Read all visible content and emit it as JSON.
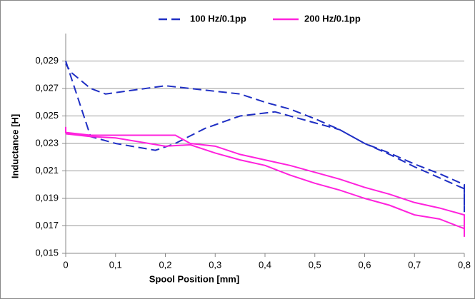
{
  "chart_data": {
    "type": "line",
    "xlabel": "Spool Position [mm]",
    "ylabel": "Inductance [H]",
    "xlim": [
      0,
      0.8
    ],
    "xticks": [
      0,
      {
        "value": 0.1,
        "label": "0,1"
      },
      {
        "value": 0.2,
        "label": "0,2"
      },
      {
        "value": 0.3,
        "label": "0,3"
      },
      {
        "value": 0.4,
        "label": "0,4"
      },
      {
        "value": 0.5,
        "label": "0,5"
      },
      {
        "value": 0.6,
        "label": "0,6"
      },
      {
        "value": 0.7,
        "label": "0,7"
      },
      {
        "value": 0.8,
        "label": "0,8"
      }
    ],
    "ylim": [
      0.015,
      0.031
    ],
    "yticks": [
      {
        "value": 0.015,
        "label": "0,015"
      },
      {
        "value": 0.017,
        "label": "0,017"
      },
      {
        "value": 0.019,
        "label": "0,019"
      },
      {
        "value": 0.021,
        "label": "0,021"
      },
      {
        "value": 0.023,
        "label": "0,023"
      },
      {
        "value": 0.025,
        "label": "0,025"
      },
      {
        "value": 0.027,
        "label": "0,027"
      },
      {
        "value": 0.029,
        "label": "0,029"
      }
    ],
    "grid": true,
    "legend": "top",
    "series": [
      {
        "name": "100 Hz/0.1pp",
        "color": "#1f2fc4",
        "line_style": "dashed",
        "x": [
          0,
          0.05,
          0.1,
          0.18,
          0.22,
          0.28,
          0.35,
          0.42,
          0.5,
          0.55,
          0.6,
          0.65,
          0.7,
          0.75,
          0.8,
          0.8,
          0.8,
          0.75,
          0.7,
          0.65,
          0.6,
          0.55,
          0.5,
          0.45,
          0.4,
          0.35,
          0.3,
          0.25,
          0.2,
          0.08,
          0.05,
          0.01,
          0
        ],
        "values": [
          0.029,
          0.0235,
          0.023,
          0.0225,
          0.023,
          0.0241,
          0.025,
          0.0253,
          0.0245,
          0.024,
          0.023,
          0.0223,
          0.0215,
          0.0208,
          0.02,
          0.018,
          0.0197,
          0.0205,
          0.0213,
          0.0222,
          0.023,
          0.024,
          0.0248,
          0.0255,
          0.026,
          0.0266,
          0.0268,
          0.027,
          0.0272,
          0.0266,
          0.027,
          0.0282,
          0.0288
        ]
      },
      {
        "name": "200 Hz/0.1pp",
        "color": "#ff22dd",
        "line_style": "solid",
        "x": [
          0,
          0,
          0.05,
          0.2,
          0.22,
          0.25,
          0.3,
          0.35,
          0.4,
          0.45,
          0.5,
          0.55,
          0.6,
          0.65,
          0.7,
          0.75,
          0.8,
          0.8,
          0.8,
          0.75,
          0.7,
          0.65,
          0.6,
          0.55,
          0.5,
          0.45,
          0.4,
          0.35,
          0.3,
          0.25,
          0.2,
          0.1,
          0.05,
          0
        ],
        "values": [
          0.0242,
          0.0238,
          0.0236,
          0.0236,
          0.0236,
          0.023,
          0.0228,
          0.0222,
          0.0218,
          0.0214,
          0.0209,
          0.0204,
          0.0198,
          0.0193,
          0.0187,
          0.0183,
          0.0178,
          0.0162,
          0.0168,
          0.0175,
          0.0178,
          0.0185,
          0.019,
          0.0196,
          0.0201,
          0.0207,
          0.0214,
          0.0218,
          0.0223,
          0.0229,
          0.0228,
          0.0234,
          0.0235,
          0.0237
        ]
      }
    ]
  }
}
